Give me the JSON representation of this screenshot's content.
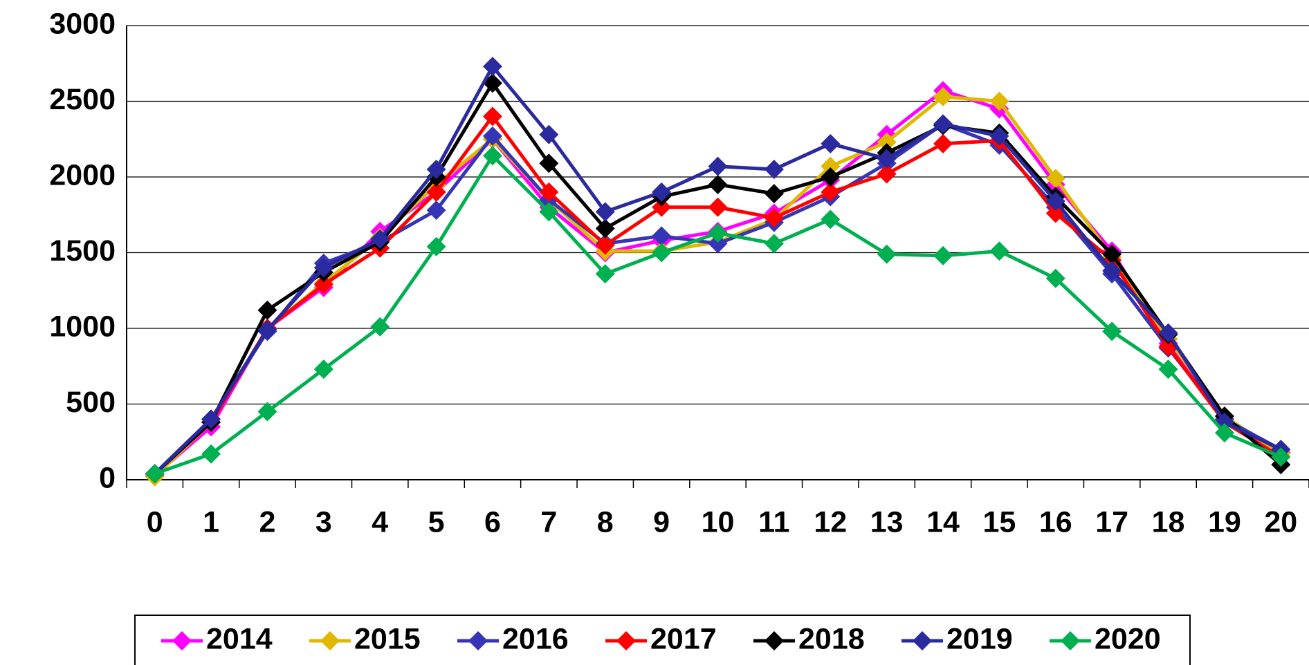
{
  "chart_data": {
    "type": "line",
    "categories": [
      "0",
      "1",
      "2",
      "3",
      "4",
      "5",
      "6",
      "7",
      "8",
      "9",
      "10",
      "11",
      "12",
      "13",
      "14",
      "15",
      "16",
      "17",
      "18",
      "19",
      "20"
    ],
    "series": [
      {
        "name": "2014",
        "color": "#ff00ff",
        "values": [
          30,
          350,
          1000,
          1270,
          1640,
          1900,
          2250,
          1800,
          1500,
          1580,
          1640,
          1760,
          1980,
          2280,
          2570,
          2450,
          1950,
          1510,
          900,
          400,
          180
        ]
      },
      {
        "name": "2015",
        "color": "#e0b800",
        "values": [
          20,
          380,
          1000,
          1300,
          1600,
          1950,
          2250,
          1850,
          1510,
          1510,
          1570,
          1720,
          2070,
          2230,
          2530,
          2500,
          1990,
          1470,
          930,
          420,
          170
        ]
      },
      {
        "name": "2016",
        "color": "#3535b5",
        "values": [
          40,
          400,
          980,
          1430,
          1570,
          1780,
          2270,
          1850,
          1560,
          1610,
          1560,
          1700,
          1870,
          2090,
          2350,
          2210,
          1800,
          1360,
          870,
          400,
          200
        ]
      },
      {
        "name": "2017",
        "color": "#ff0000",
        "values": [
          40,
          380,
          1000,
          1290,
          1530,
          1900,
          2400,
          1900,
          1550,
          1800,
          1800,
          1730,
          1900,
          2020,
          2220,
          2240,
          1760,
          1450,
          880,
          380,
          150
        ]
      },
      {
        "name": "2018",
        "color": "#000000",
        "values": [
          40,
          380,
          1120,
          1370,
          1570,
          2000,
          2620,
          2090,
          1660,
          1870,
          1950,
          1890,
          2000,
          2160,
          2340,
          2290,
          1870,
          1490,
          960,
          420,
          100
        ]
      },
      {
        "name": "2019",
        "color": "#2a2a9e",
        "values": [
          40,
          400,
          990,
          1400,
          1590,
          2050,
          2730,
          2280,
          1770,
          1900,
          2070,
          2050,
          2220,
          2120,
          2350,
          2270,
          1840,
          1380,
          970,
          380,
          200
        ]
      },
      {
        "name": "2020",
        "color": "#00b050",
        "values": [
          40,
          170,
          450,
          730,
          1010,
          1540,
          2140,
          1770,
          1360,
          1500,
          1630,
          1560,
          1720,
          1490,
          1480,
          1510,
          1330,
          980,
          730,
          310,
          150
        ]
      }
    ],
    "ylim": [
      0,
      3000
    ],
    "yticks": [
      0,
      500,
      1000,
      1500,
      2000,
      2500,
      3000
    ],
    "grid": true,
    "legend": "bottom"
  }
}
